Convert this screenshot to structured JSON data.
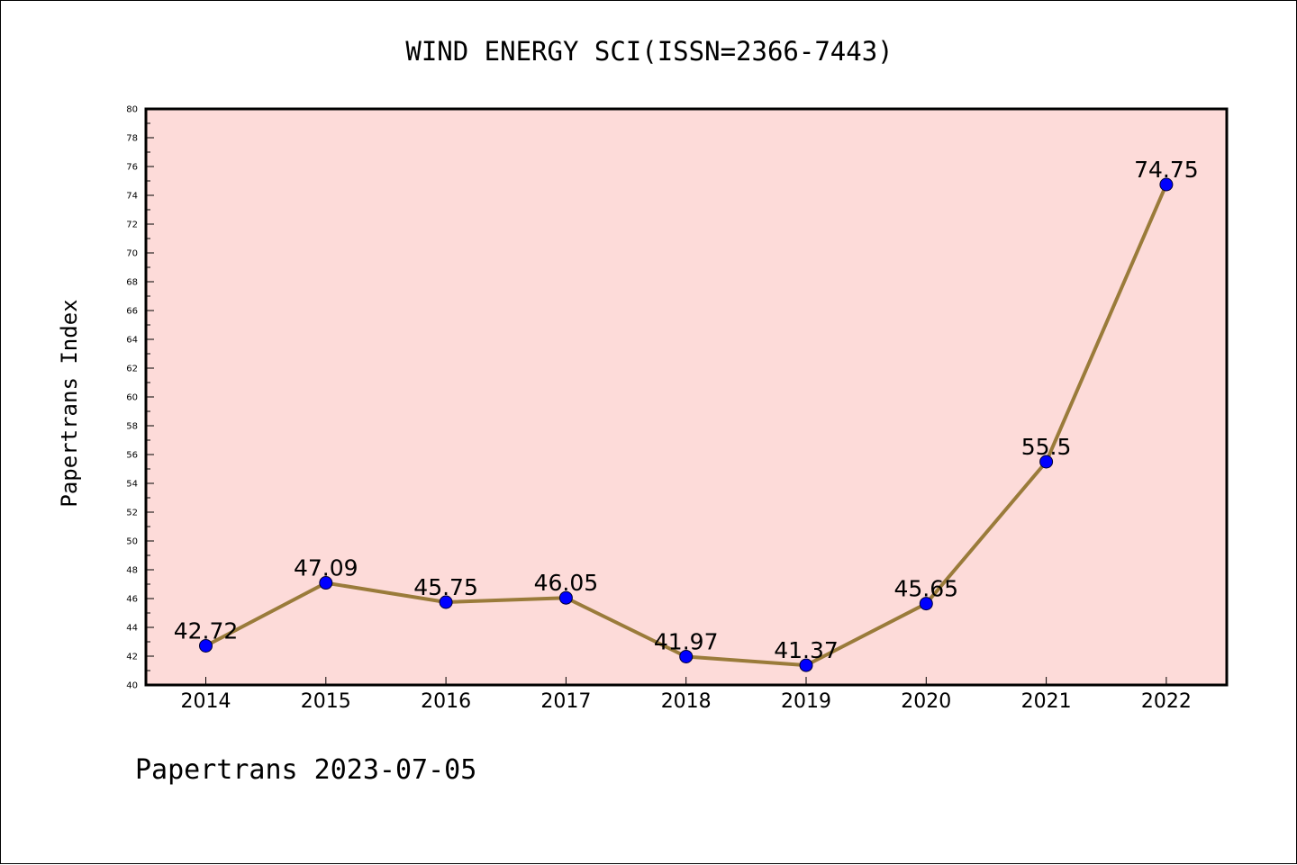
{
  "chart_data": {
    "type": "line",
    "title": "WIND ENERGY SCI(ISSN=2366-7443)",
    "xlabel": "",
    "ylabel": "Papertrans Index",
    "x": [
      "2014",
      "2015",
      "2016",
      "2017",
      "2018",
      "2019",
      "2020",
      "2021",
      "2022"
    ],
    "series": [
      {
        "values": [
          42.72,
          47.09,
          45.75,
          46.05,
          41.97,
          41.37,
          45.65,
          55.5,
          74.75
        ]
      }
    ],
    "data_labels": [
      "42.72",
      "47.09",
      "45.75",
      "46.05",
      "41.97",
      "41.37",
      "45.65",
      "55.5",
      "74.75"
    ],
    "ylim": [
      40,
      80
    ],
    "yticks": [
      "40",
      "42",
      "44",
      "46",
      "48",
      "50",
      "52",
      "54",
      "56",
      "58",
      "60",
      "62",
      "64",
      "66",
      "68",
      "70",
      "72",
      "74",
      "76",
      "78",
      "80"
    ],
    "grid": false,
    "legend": "none",
    "colors": {
      "plot_background": "#fddbd9",
      "line": "#9a7b3a",
      "marker": "#0000ff"
    }
  },
  "footer": "Papertrans 2023-07-05"
}
